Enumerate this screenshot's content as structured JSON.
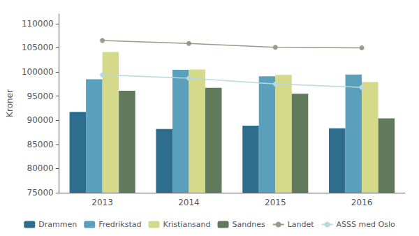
{
  "chart_data": {
    "type": "bar",
    "categories": [
      "2013",
      "2014",
      "2015",
      "2016"
    ],
    "series": [
      {
        "name": "Drammen",
        "type": "bar",
        "color": "#2e6d8e",
        "values": [
          91722,
          88206,
          88864,
          88336
        ]
      },
      {
        "name": "Fredrikstad",
        "type": "bar",
        "color": "#5aa0bc",
        "values": [
          98503,
          100428,
          99106,
          99468
        ]
      },
      {
        "name": "Kristiansand",
        "type": "bar",
        "color": "#d4da8a",
        "values": [
          104127,
          100500,
          99400,
          97900
        ]
      },
      {
        "name": "Sandnes",
        "type": "bar",
        "color": "#627a5c",
        "values": [
          96100,
          96700,
          95500,
          90400
        ]
      },
      {
        "name": "Landet",
        "type": "line",
        "marker": "circle",
        "color": "#9e9889",
        "values": [
          106500,
          105900,
          105100,
          105000
        ]
      },
      {
        "name": "ASSS med Oslo",
        "type": "line",
        "marker": "circle",
        "color": "#b8d8df",
        "values": [
          99400,
          98700,
          97500,
          96800
        ]
      }
    ],
    "ylabel": "Kroner",
    "ylim": [
      75000,
      112000
    ],
    "yticks": [
      75000,
      80000,
      85000,
      90000,
      95000,
      100000,
      105000,
      110000
    ],
    "grid": false,
    "legend": "bottom"
  }
}
